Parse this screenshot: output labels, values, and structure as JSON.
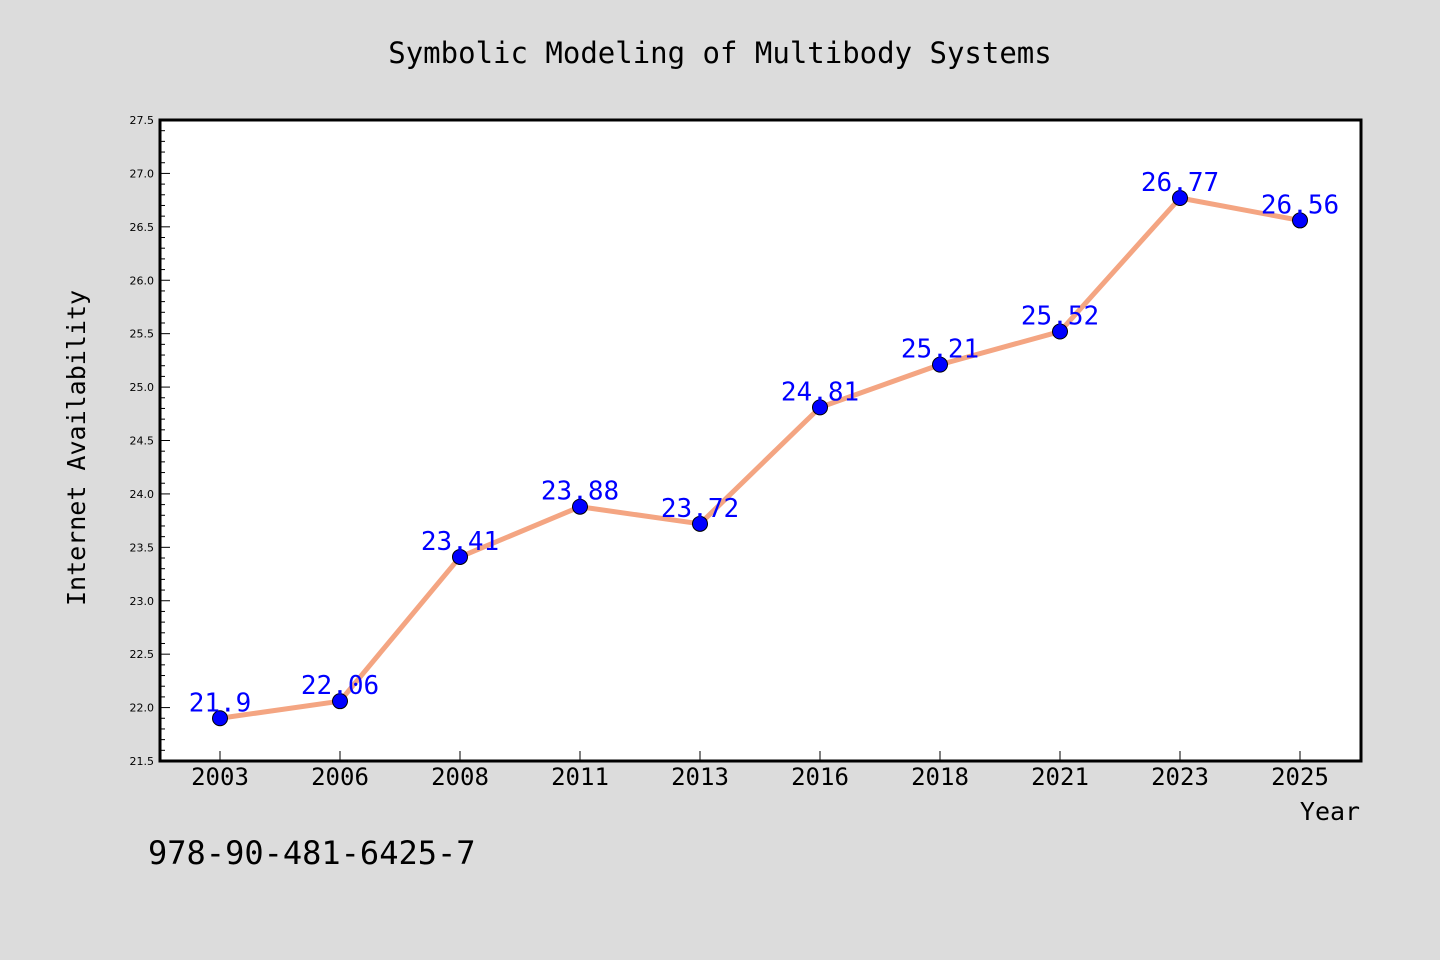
{
  "chart_data": {
    "type": "line",
    "title": "Symbolic Modeling of Multibody Systems",
    "xlabel": "Year",
    "ylabel": "Internet Availability",
    "categories": [
      "2003",
      "2006",
      "2008",
      "2011",
      "2013",
      "2016",
      "2018",
      "2021",
      "2023",
      "2025"
    ],
    "series": [
      {
        "values": [
          21.9,
          22.06,
          23.41,
          23.88,
          23.72,
          24.81,
          25.21,
          25.52,
          26.77,
          26.56
        ],
        "line_color": "#f4a582",
        "marker_color": "#0000ff"
      }
    ],
    "data_labels": [
      "21.9",
      "22.06",
      "23.41",
      "23.88",
      "23.72",
      "24.81",
      "25.21",
      "25.52",
      "26.77",
      "26.56"
    ],
    "ylim": [
      21.5,
      27.5
    ],
    "yticks": [
      "21.5",
      "22.0",
      "22.5",
      "23.0",
      "23.5",
      "24.0",
      "24.5",
      "25.0",
      "25.5",
      "26.0",
      "26.5",
      "27.0",
      "27.5"
    ],
    "grid": false,
    "legend": "none",
    "label_color": "#0000ff"
  },
  "footer_text": "978-90-481-6425-7"
}
